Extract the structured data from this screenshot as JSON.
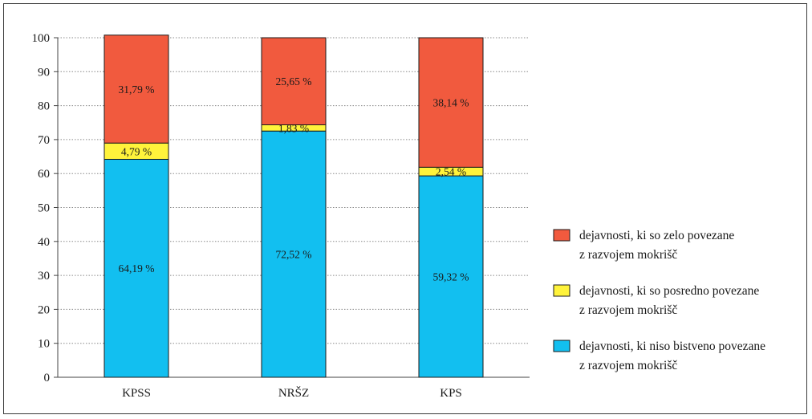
{
  "chart_data": {
    "type": "bar",
    "stacked": true,
    "categories": [
      "KPSS",
      "NRŠZ",
      "KPS"
    ],
    "series": [
      {
        "name": "dejavnosti, ki niso bistveno povezane z razvojem mokrišč",
        "legend_lines": [
          "dejavnosti, ki niso bistveno povezane",
          "z razvojem mokrišč"
        ],
        "values": [
          64.19,
          72.52,
          59.32
        ],
        "labels": [
          "64,19 %",
          "72,52 %",
          "59,32 %"
        ],
        "color": "#12bff0"
      },
      {
        "name": "dejavnosti, ki so posredno povezane z razvojem mokrišč",
        "legend_lines": [
          "dejavnosti, ki so posredno povezane",
          "z razvojem mokrišč"
        ],
        "values": [
          4.79,
          1.83,
          2.54
        ],
        "labels": [
          "4,79 %",
          "1,83 %",
          "2,54 %"
        ],
        "color": "#fff33b"
      },
      {
        "name": "dejavnosti, ki so zelo povezane z razvojem mokrišč",
        "legend_lines": [
          "dejavnosti, ki so zelo povezane",
          "z razvojem mokrišč"
        ],
        "values": [
          31.79,
          25.65,
          38.14
        ],
        "labels": [
          "31,79 %",
          "25,65 %",
          "38,14 %"
        ],
        "color": "#f15a3e"
      }
    ],
    "y_ticks": [
      0,
      10,
      20,
      30,
      40,
      50,
      60,
      70,
      80,
      90,
      100
    ],
    "ylim": [
      0,
      100
    ],
    "grid": "horizontal-dotted",
    "legend": "right",
    "legend_order": [
      2,
      1,
      0
    ]
  }
}
